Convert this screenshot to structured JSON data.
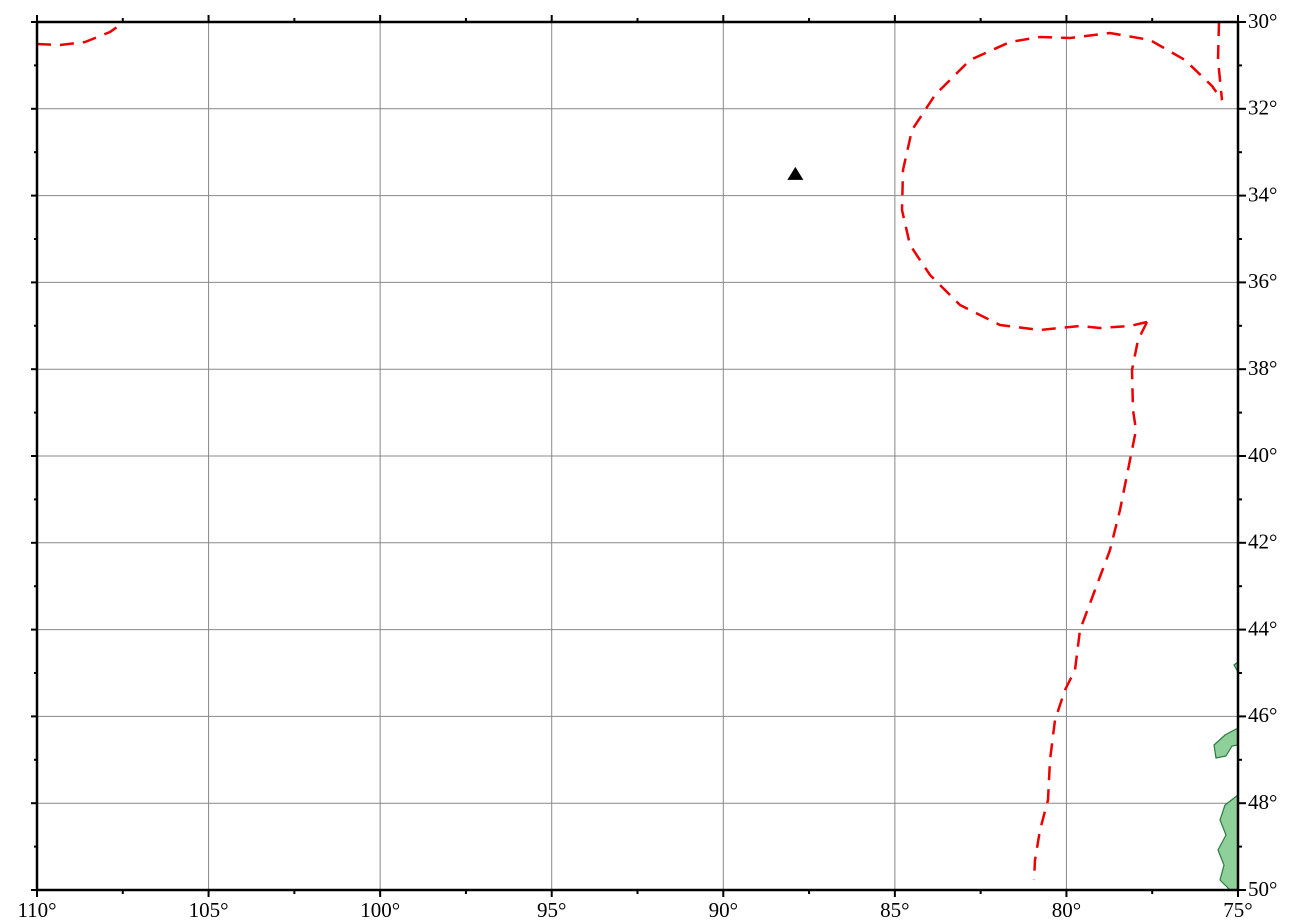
{
  "map": {
    "xlim": [
      110,
      75
    ],
    "ylim": [
      30,
      50
    ],
    "xticks": [
      {
        "value": 110,
        "label": "110°"
      },
      {
        "value": 105,
        "label": "105°"
      },
      {
        "value": 100,
        "label": "100°"
      },
      {
        "value": 95,
        "label": "95°"
      },
      {
        "value": 90,
        "label": "90°"
      },
      {
        "value": 85,
        "label": "85°"
      },
      {
        "value": 80,
        "label": "80°"
      },
      {
        "value": 75,
        "label": "75°"
      }
    ],
    "yticks": [
      {
        "value": 30,
        "label": "30°"
      },
      {
        "value": 32,
        "label": "32°"
      },
      {
        "value": 34,
        "label": "34°"
      },
      {
        "value": 36,
        "label": "36°"
      },
      {
        "value": 38,
        "label": "38°"
      },
      {
        "value": 40,
        "label": "40°"
      },
      {
        "value": 42,
        "label": "42°"
      },
      {
        "value": 44,
        "label": "44°"
      },
      {
        "value": 46,
        "label": "46°"
      },
      {
        "value": 48,
        "label": "48°"
      },
      {
        "value": 50,
        "label": "50°"
      }
    ],
    "grid": true,
    "markers": [
      {
        "x": 87.9,
        "y": 33.5
      }
    ]
  }
}
